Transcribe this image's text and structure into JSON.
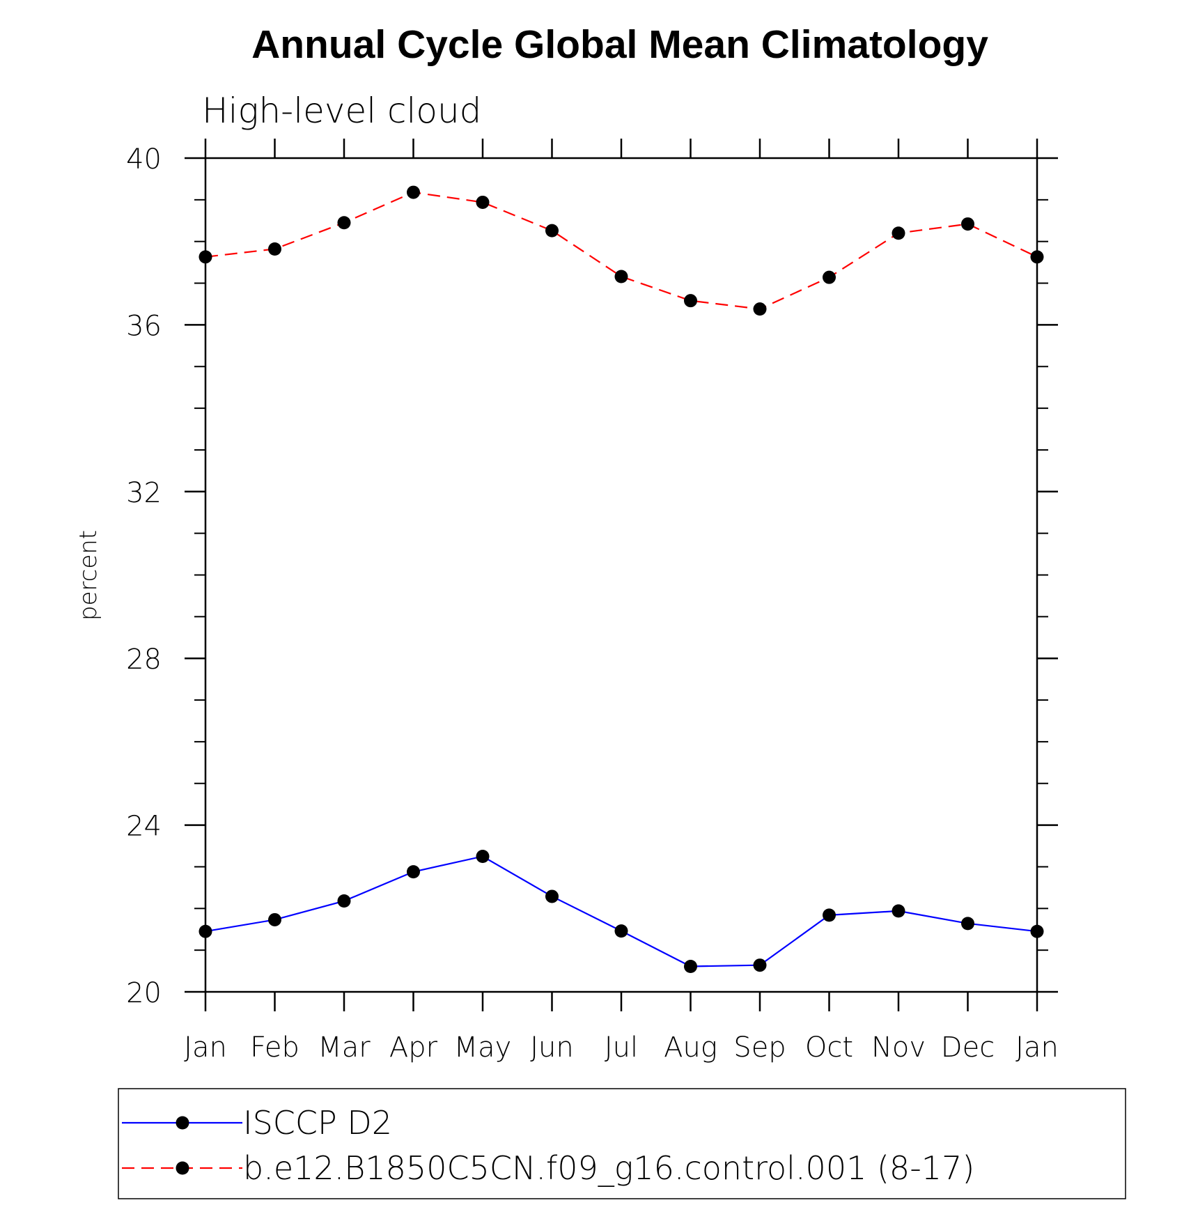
{
  "chart_data": {
    "type": "line",
    "title": "Annual Cycle Global Mean Climatology",
    "subtitle": "High-level cloud",
    "ylabel": "percent",
    "xlabel": "",
    "categories": [
      "Jan",
      "Feb",
      "Mar",
      "Apr",
      "May",
      "Jun",
      "Jul",
      "Aug",
      "Sep",
      "Oct",
      "Nov",
      "Dec",
      "Jan"
    ],
    "ylim": [
      20,
      40
    ],
    "yticks": [
      "20",
      "24",
      "28",
      "32",
      "36",
      "40"
    ],
    "y_minor_step": 1,
    "legend_position": "bottom",
    "series": [
      {
        "name": "ISCCP D2",
        "color": "#0000ff",
        "dash": "solid",
        "marker": "filled-circle",
        "values": [
          21.45,
          21.73,
          22.18,
          22.88,
          23.25,
          22.29,
          21.46,
          20.61,
          20.64,
          21.84,
          21.94,
          21.64,
          21.45
        ]
      },
      {
        "name": "b.e12.B1850C5CN.f09_g16.control.001 (8-17)",
        "color": "#ff0000",
        "dash": "dashed",
        "marker": "filled-circle",
        "values": [
          37.63,
          37.82,
          38.45,
          39.18,
          38.94,
          38.26,
          37.16,
          36.58,
          36.38,
          37.14,
          38.2,
          38.42,
          37.63
        ]
      }
    ]
  }
}
